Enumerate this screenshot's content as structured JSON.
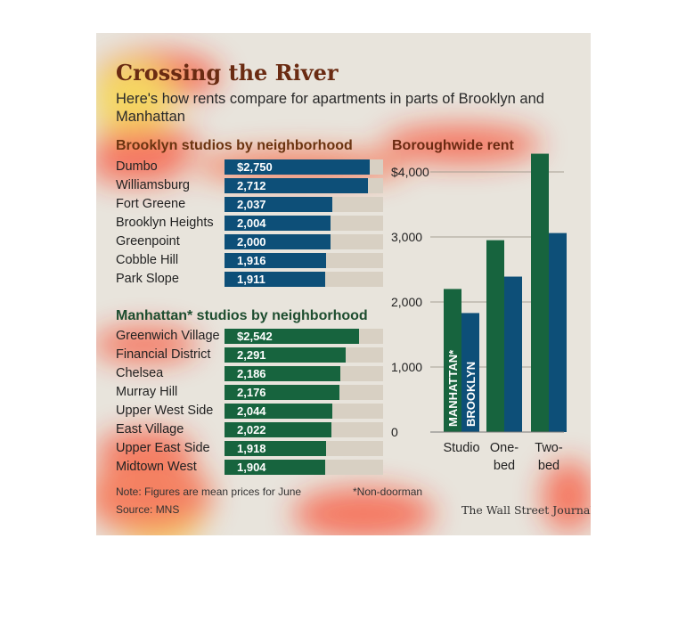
{
  "title": "Crossing the River",
  "subtitle": "Here's how rents compare for apartments in parts of Brooklyn and Manhattan",
  "brooklyn": {
    "title": "Brooklyn studios by neighborhood",
    "rows": [
      {
        "name": "Dumbo",
        "label": "$2,750",
        "value": 2750
      },
      {
        "name": "Williamsburg",
        "label": "2,712",
        "value": 2712
      },
      {
        "name": "Fort Greene",
        "label": "2,037",
        "value": 2037
      },
      {
        "name": "Brooklyn Heights",
        "label": "2,004",
        "value": 2004
      },
      {
        "name": "Greenpoint",
        "label": "2,000",
        "value": 2000
      },
      {
        "name": "Cobble Hill",
        "label": "1,916",
        "value": 1916
      },
      {
        "name": "Park Slope",
        "label": "1,911",
        "value": 1911
      }
    ]
  },
  "manhattan": {
    "title": "Manhattan* studios by neighborhood",
    "rows": [
      {
        "name": "Greenwich Village",
        "label": "$2,542",
        "value": 2542
      },
      {
        "name": "Financial District",
        "label": "2,291",
        "value": 2291
      },
      {
        "name": "Chelsea",
        "label": "2,186",
        "value": 2186
      },
      {
        "name": "Murray Hill",
        "label": "2,176",
        "value": 2176
      },
      {
        "name": "Upper West Side",
        "label": "2,044",
        "value": 2044
      },
      {
        "name": "East Village",
        "label": "2,022",
        "value": 2022
      },
      {
        "name": "Upper East Side",
        "label": "1,918",
        "value": 1918
      },
      {
        "name": "Midtown West",
        "label": "1,904",
        "value": 1904
      }
    ]
  },
  "note": "Note: Figures are mean prices for June",
  "source": "Source: MNS",
  "footnote": "*Non-doorman",
  "credit": "The Wall Street Journal",
  "colors": {
    "brooklyn": "#0d4f78",
    "manhattan": "#17643e",
    "track": "#d8d0c3"
  },
  "chart_data": [
    {
      "type": "bar",
      "orientation": "horizontal",
      "title": "Brooklyn studios by neighborhood",
      "categories": [
        "Dumbo",
        "Williamsburg",
        "Fort Greene",
        "Brooklyn Heights",
        "Greenpoint",
        "Cobble Hill",
        "Park Slope"
      ],
      "values": [
        2750,
        2712,
        2037,
        2004,
        2000,
        1916,
        1911
      ]
    },
    {
      "type": "bar",
      "orientation": "horizontal",
      "title": "Manhattan* studios by neighborhood",
      "categories": [
        "Greenwich Village",
        "Financial District",
        "Chelsea",
        "Murray Hill",
        "Upper West Side",
        "East Village",
        "Upper East Side",
        "Midtown West"
      ],
      "values": [
        2542,
        2291,
        2186,
        2176,
        2044,
        2022,
        1918,
        1904
      ]
    },
    {
      "type": "bar",
      "title": "Boroughwide rent",
      "categories": [
        "Studio",
        "One-bed",
        "Two-bed"
      ],
      "series": [
        {
          "name": "MANHATTAN*",
          "values": [
            2200,
            2950,
            4280
          ]
        },
        {
          "name": "BROOKLYN",
          "values": [
            1830,
            2390,
            3060
          ]
        }
      ],
      "ylim": [
        0,
        4000
      ],
      "yticks": [
        0,
        1000,
        2000,
        3000,
        4000
      ],
      "ytick_labels": [
        "0",
        "1,000",
        "2,000",
        "3,000",
        "$4,000"
      ],
      "xtick_labels": [
        [
          "Studio"
        ],
        [
          "One-",
          "bed"
        ],
        [
          "Two-",
          "bed"
        ]
      ],
      "grid": true
    }
  ]
}
